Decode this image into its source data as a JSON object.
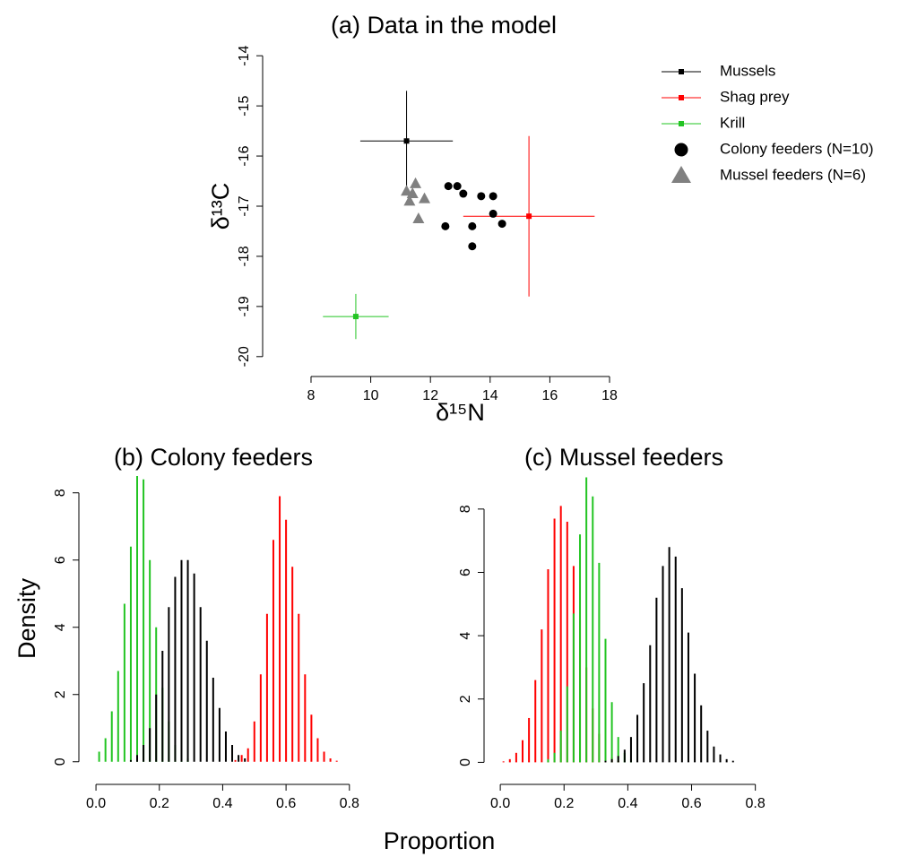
{
  "chart_data": [
    {
      "type": "scatter",
      "title": "(a) Data in the model",
      "x_label": "δ¹⁵N",
      "y_label": "δ¹³C",
      "xlim": [
        7.4,
        18.6
      ],
      "ylim": [
        -20.2,
        -13.8
      ],
      "xticks": [
        8,
        10,
        12,
        14,
        16,
        18
      ],
      "yticks": [
        -20,
        -19,
        -18,
        -17,
        -16,
        -15,
        -14
      ],
      "legend": "top-right",
      "series": [
        {
          "name": "Mussels",
          "color": "#000000",
          "marker": "square",
          "x": [
            11.2
          ],
          "values": [
            -15.7
          ],
          "xerr": [
            1.55
          ],
          "yerr": [
            1.0
          ]
        },
        {
          "name": "Shag prey",
          "color": "#ff0000",
          "marker": "square",
          "x": [
            15.3
          ],
          "values": [
            -17.2
          ],
          "xerr": [
            2.2
          ],
          "yerr": [
            1.6
          ]
        },
        {
          "name": "Krill",
          "color": "#22c422",
          "marker": "square",
          "x": [
            9.5
          ],
          "values": [
            -19.2
          ],
          "xerr": [
            1.1
          ],
          "yerr": [
            0.45
          ]
        },
        {
          "name": "Colony feeders (N=10)",
          "color": "#000000",
          "marker": "circle",
          "x": [
            12.6,
            12.9,
            13.1,
            13.7,
            14.1,
            14.1,
            14.4,
            13.4,
            12.5,
            13.4
          ],
          "values": [
            -16.6,
            -16.6,
            -16.75,
            -16.8,
            -16.8,
            -17.15,
            -17.35,
            -17.4,
            -17.4,
            -17.8
          ]
        },
        {
          "name": "Mussel feeders (N=6)",
          "color": "#808080",
          "marker": "triangle",
          "x": [
            11.2,
            11.5,
            11.3,
            11.8,
            11.6,
            11.4
          ],
          "values": [
            -16.7,
            -16.55,
            -16.9,
            -16.85,
            -17.25,
            -16.75
          ]
        }
      ]
    },
    {
      "type": "bar",
      "title": "(b) Colony feeders",
      "xlim": [
        -0.02,
        0.86
      ],
      "ylim": [
        -0.3,
        8.5
      ],
      "xticks": [
        {
          "value": 0,
          "label": "0.0"
        },
        0.2,
        0.4,
        0.6,
        0.8
      ],
      "yticks": [
        0,
        2,
        4,
        6,
        8
      ],
      "series": [
        {
          "color": "#22c422",
          "x": [
            0.01,
            0.03,
            0.05,
            0.07,
            0.09,
            0.11,
            0.13,
            0.15,
            0.17,
            0.19,
            0.21,
            0.23,
            0.25,
            0.27,
            0.29
          ],
          "values": [
            0.3,
            0.7,
            1.5,
            2.7,
            4.7,
            6.4,
            8.5,
            8.4,
            6.0,
            4.0,
            2.2,
            1.2,
            0.5,
            0.2,
            0.1
          ]
        },
        {
          "color": "#000000",
          "x": [
            0.11,
            0.13,
            0.15,
            0.17,
            0.19,
            0.21,
            0.23,
            0.25,
            0.27,
            0.29,
            0.31,
            0.33,
            0.35,
            0.37,
            0.39,
            0.41,
            0.43,
            0.45,
            0.47
          ],
          "values": [
            0.05,
            0.2,
            0.5,
            1.0,
            2.0,
            3.3,
            4.6,
            5.5,
            6.0,
            6.0,
            5.6,
            4.6,
            3.6,
            2.5,
            1.6,
            0.9,
            0.5,
            0.2,
            0.1
          ]
        },
        {
          "color": "#ff0000",
          "x": [
            0.44,
            0.46,
            0.48,
            0.5,
            0.52,
            0.54,
            0.56,
            0.58,
            0.6,
            0.62,
            0.64,
            0.66,
            0.68,
            0.7,
            0.72,
            0.74,
            0.76
          ],
          "values": [
            0.05,
            0.2,
            0.4,
            1.2,
            2.6,
            4.4,
            6.6,
            7.9,
            7.2,
            5.8,
            4.4,
            2.6,
            1.4,
            0.7,
            0.3,
            0.1,
            0.03
          ]
        }
      ]
    },
    {
      "type": "bar",
      "title": "(c) Mussel feeders",
      "xlim": [
        -0.02,
        0.86
      ],
      "ylim": [
        -0.3,
        9.1
      ],
      "xticks": [
        {
          "value": 0,
          "label": "0.0"
        },
        0.2,
        0.4,
        0.6,
        0.8
      ],
      "yticks": [
        0,
        2,
        4,
        6,
        8
      ],
      "series": [
        {
          "color": "#ff0000",
          "x": [
            0.01,
            0.03,
            0.05,
            0.07,
            0.09,
            0.11,
            0.13,
            0.15,
            0.17,
            0.19,
            0.21,
            0.23,
            0.25,
            0.27,
            0.29,
            0.31,
            0.33,
            0.35,
            0.37
          ],
          "values": [
            0.03,
            0.1,
            0.3,
            0.7,
            1.4,
            2.6,
            4.2,
            6.1,
            7.7,
            8.1,
            7.6,
            6.2,
            4.5,
            3.0,
            1.7,
            0.9,
            0.4,
            0.15,
            0.05
          ]
        },
        {
          "color": "#22c422",
          "x": [
            0.15,
            0.17,
            0.19,
            0.21,
            0.23,
            0.25,
            0.27,
            0.29,
            0.31,
            0.33,
            0.35,
            0.37,
            0.39,
            0.41
          ],
          "values": [
            0.1,
            0.3,
            1.0,
            2.4,
            4.7,
            7.2,
            9.0,
            8.4,
            6.3,
            3.9,
            1.9,
            0.8,
            0.3,
            0.1
          ]
        },
        {
          "color": "#000000",
          "x": [
            0.33,
            0.35,
            0.37,
            0.39,
            0.41,
            0.43,
            0.45,
            0.47,
            0.49,
            0.51,
            0.53,
            0.55,
            0.57,
            0.59,
            0.61,
            0.63,
            0.65,
            0.67,
            0.69,
            0.71,
            0.73
          ],
          "values": [
            0.05,
            0.1,
            0.2,
            0.4,
            0.8,
            1.5,
            2.5,
            3.7,
            5.2,
            6.2,
            6.8,
            6.5,
            5.5,
            4.1,
            2.8,
            1.8,
            1.0,
            0.5,
            0.25,
            0.1,
            0.05
          ]
        }
      ]
    }
  ],
  "y_label": "Density",
  "x_label": "Proportion"
}
